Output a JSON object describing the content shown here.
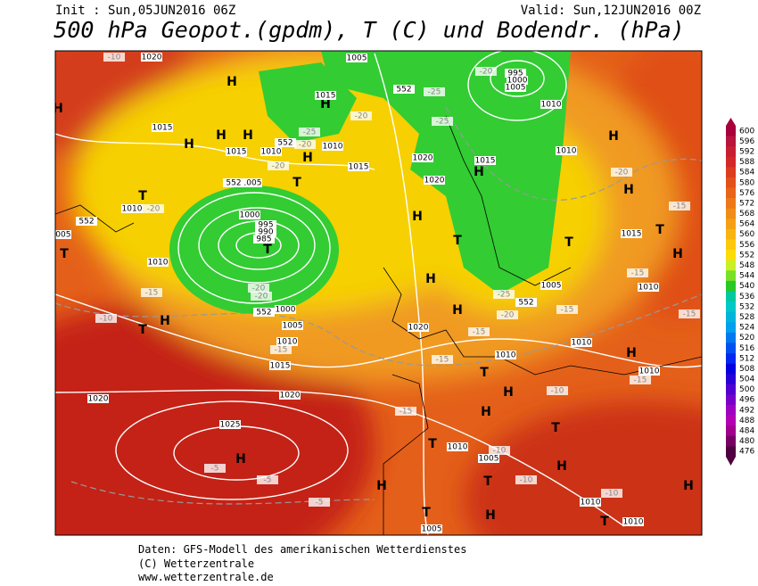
{
  "header": {
    "init": "Init : Sun,05JUN2016 06Z",
    "valid": "Valid: Sun,12JUN2016 00Z",
    "title": "500 hPa Geopot.(gpdm), T (C) und Bodendr. (hPa)"
  },
  "footer": {
    "lines": [
      "Daten: GFS-Modell des amerikanischen Wetterdienstes",
      "(C) Wetterzentrale",
      "www.wetterzentrale.de"
    ]
  },
  "colorbar": {
    "levels": [
      600,
      596,
      592,
      588,
      584,
      580,
      576,
      572,
      568,
      564,
      560,
      556,
      552,
      548,
      544,
      540,
      536,
      532,
      528,
      524,
      520,
      516,
      512,
      508,
      504,
      500,
      496,
      492,
      488,
      484,
      480,
      476
    ],
    "colors": [
      "#a8003c",
      "#b8143c",
      "#c81e32",
      "#d42828",
      "#dc3c1e",
      "#e4501a",
      "#e86418",
      "#ec7818",
      "#f08c18",
      "#f4a014",
      "#f8b410",
      "#fcc80c",
      "#fcdc08",
      "#c8f028",
      "#78e028",
      "#28c828",
      "#00c8a0",
      "#00c8c8",
      "#00b4dc",
      "#00a0f0",
      "#0078f0",
      "#0050f0",
      "#0028f0",
      "#0000e0",
      "#2800d8",
      "#5000d0",
      "#7800c8",
      "#a000c0",
      "#b400b4",
      "#a0008c",
      "#780064",
      "#500040"
    ]
  },
  "map": {
    "highs": [
      "H",
      "H",
      "H",
      "H",
      "H",
      "H",
      "H",
      "H",
      "H",
      "H",
      "H",
      "H",
      "H",
      "H",
      "H",
      "H",
      "H",
      "H",
      "H",
      "H",
      "H",
      "H",
      "H"
    ],
    "lows": [
      "T",
      "T",
      "T",
      "T",
      "T",
      "T",
      "T",
      "T",
      "T",
      "T",
      "T",
      "T",
      "T",
      "T"
    ],
    "isobars": [
      "1020",
      "1015",
      "1015",
      "1010",
      "1010",
      "1015",
      "1005",
      "1015",
      "1005",
      "1000",
      "995",
      "990",
      "985",
      "1010",
      "1010",
      "1005",
      "1000",
      "1005",
      "1010",
      "1015",
      "1020",
      "1020",
      "1025",
      "1020",
      "1020",
      "1015",
      "1010",
      "1010",
      "1015",
      "1010",
      "1005",
      "1020",
      "1010",
      "1010",
      "1010",
      "1010",
      "1005",
      "1010",
      "1010",
      "1005",
      "995",
      "1000",
      "1005"
    ],
    "temperatures": [
      "-10",
      "-25",
      "-20",
      "-25",
      "-20",
      "-25",
      "-20",
      "-20",
      "-20",
      "-15",
      "-10",
      "-20",
      "-20",
      "-15",
      "-15",
      "-15",
      "-15",
      "-10",
      "-15",
      "-15",
      "-15",
      "-15",
      "-20",
      "-25",
      "-20",
      "-10",
      "-10",
      "-10",
      "-5",
      "-5",
      "-5",
      "-15"
    ],
    "geopotential": [
      "552",
      "552",
      "552",
      "552",
      "552",
      "552"
    ]
  }
}
